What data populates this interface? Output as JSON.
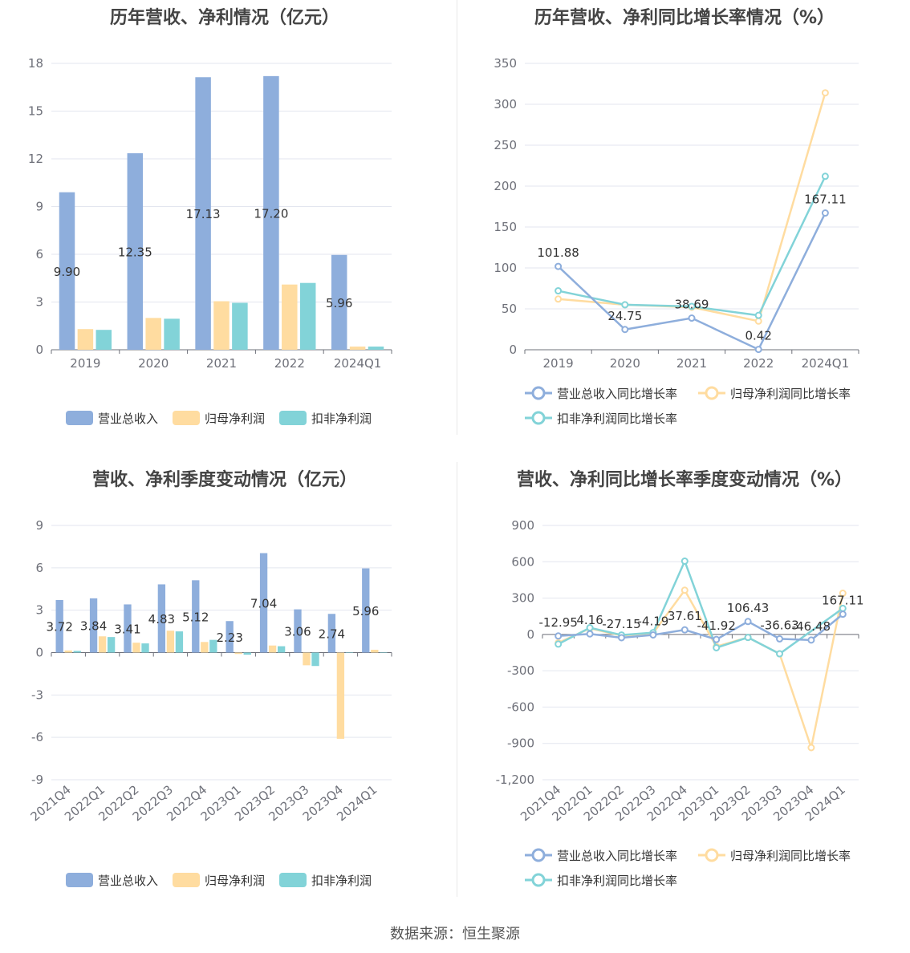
{
  "source": "数据来源：恒生聚源",
  "colors": {
    "revenue": "#8eaedc",
    "parent_profit": "#ffdca0",
    "deducted_profit": "#82d3d8",
    "grid": "#e3e6ef",
    "axis": "#6e7079"
  },
  "chart_data": [
    {
      "id": "annual-amounts",
      "type": "bar",
      "title": "历年营收、净利情况（亿元）",
      "categories": [
        "2019",
        "2020",
        "2021",
        "2022",
        "2024Q1"
      ],
      "ylim": [
        0,
        18
      ],
      "yticks": [
        "0",
        "3",
        "6",
        "9",
        "12",
        "15",
        "18"
      ],
      "series": [
        {
          "name": "营业总收入",
          "values": [
            9.9,
            12.35,
            17.13,
            17.2,
            5.96
          ],
          "labels": [
            "9.90",
            "12.35",
            "17.13",
            "17.20",
            "5.96"
          ]
        },
        {
          "name": "归母净利润",
          "values": [
            1.3,
            2.0,
            3.05,
            4.1,
            0.2
          ]
        },
        {
          "name": "扣非净利润",
          "values": [
            1.25,
            1.95,
            2.95,
            4.2,
            0.2
          ]
        }
      ],
      "legend": "bottom"
    },
    {
      "id": "annual-growth",
      "type": "line",
      "title": "历年营收、净利同比增长率情况（%）",
      "categories": [
        "2019",
        "2020",
        "2021",
        "2022",
        "2024Q1"
      ],
      "ylim": [
        0,
        350
      ],
      "yticks": [
        "0",
        "50",
        "100",
        "150",
        "200",
        "250",
        "300",
        "350"
      ],
      "series": [
        {
          "name": "营业总收入同比增长率",
          "values": [
            101.88,
            24.75,
            38.69,
            0.42,
            167.11
          ],
          "labels": [
            "101.88",
            "24.75",
            "38.69",
            "0.42",
            "167.11"
          ]
        },
        {
          "name": "归母净利润同比增长率",
          "values": [
            62,
            55,
            52,
            35,
            314
          ]
        },
        {
          "name": "扣非净利润同比增长率",
          "values": [
            72,
            55,
            53,
            42,
            212
          ]
        }
      ],
      "legend": "bottom"
    },
    {
      "id": "quarterly-amounts",
      "type": "bar",
      "title": "营收、净利季度变动情况（亿元）",
      "categories": [
        "2021Q4",
        "2022Q1",
        "2022Q2",
        "2022Q3",
        "2022Q4",
        "2023Q1",
        "2023Q2",
        "2023Q3",
        "2023Q4",
        "2024Q1"
      ],
      "ylim": [
        -9,
        9
      ],
      "yticks": [
        "-9",
        "-6",
        "-3",
        "0",
        "3",
        "6",
        "9"
      ],
      "series": [
        {
          "name": "营业总收入",
          "values": [
            3.72,
            3.84,
            3.41,
            4.83,
            5.12,
            2.23,
            7.04,
            3.06,
            2.74,
            5.96
          ],
          "labels": [
            "3.72",
            "3.84",
            "3.41",
            "4.83",
            "5.12",
            "2.23",
            "7.04",
            "3.06",
            "2.74",
            "5.96"
          ]
        },
        {
          "name": "归母净利润",
          "values": [
            0.15,
            1.15,
            0.7,
            1.55,
            0.75,
            -0.1,
            0.5,
            -0.9,
            -6.1,
            0.2
          ]
        },
        {
          "name": "扣非净利润",
          "values": [
            0.12,
            1.1,
            0.65,
            1.5,
            0.9,
            -0.15,
            0.45,
            -0.95,
            0.0,
            0.0
          ]
        }
      ],
      "legend": "bottom"
    },
    {
      "id": "quarterly-growth",
      "type": "line",
      "title": "营收、净利同比增长率季度变动情况（%）",
      "categories": [
        "2021Q4",
        "2022Q1",
        "2022Q2",
        "2022Q3",
        "2022Q4",
        "2023Q1",
        "2023Q2",
        "2023Q3",
        "2023Q4",
        "2024Q1"
      ],
      "ylim": [
        -1200,
        900
      ],
      "yticks": [
        "-1,200",
        "-900",
        "-600",
        "-300",
        "0",
        "300",
        "600",
        "900"
      ],
      "series": [
        {
          "name": "营业总收入同比增长率",
          "values": [
            -12.95,
            4.16,
            -27.15,
            -4.19,
            37.61,
            -41.92,
            106.43,
            -36.63,
            -46.48,
            167.11
          ],
          "labels": [
            "-12.95",
            "4.16",
            "-27.15",
            "-4.19",
            "37.61",
            "-41.92",
            "106.43",
            "-36.63",
            "-46.48",
            "167.11"
          ]
        },
        {
          "name": "归母净利润同比增长率",
          "values": [
            -70,
            50,
            -10,
            10,
            365,
            -100,
            -25,
            -160,
            -935,
            340
          ]
        },
        {
          "name": "扣非净利润同比增长率",
          "values": [
            -80,
            55,
            -5,
            15,
            605,
            -110,
            -25,
            -160,
            null,
            215
          ]
        }
      ],
      "legend": "bottom"
    }
  ]
}
